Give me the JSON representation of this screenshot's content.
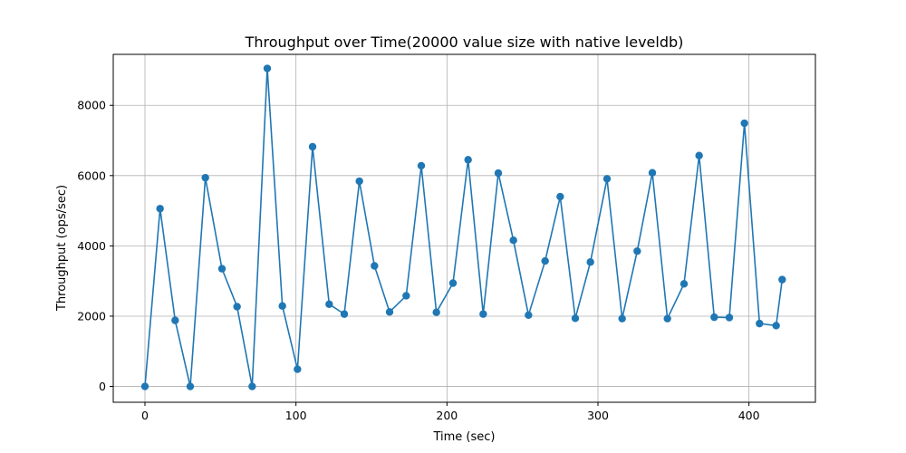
{
  "chart_data": {
    "type": "line",
    "title": "Throughput over Time(20000 value size with native leveldb)",
    "xlabel": "Time (sec)",
    "ylabel": "Throughput (ops/sec)",
    "xlim": [
      -21,
      444
    ],
    "ylim": [
      -450,
      9450
    ],
    "xticks": [
      0,
      100,
      200,
      300,
      400
    ],
    "yticks": [
      0,
      2000,
      4000,
      6000,
      8000
    ],
    "grid": true,
    "colors": {
      "series": "#1f77b4",
      "grid": "#b0b0b0",
      "axes": "#000000"
    },
    "series": [
      {
        "x": [
          0,
          10,
          20,
          30,
          40,
          51,
          61,
          71,
          81,
          91,
          101,
          111,
          122,
          132,
          142,
          152,
          162,
          173,
          183,
          193,
          204,
          214,
          224,
          234,
          244,
          254,
          265,
          275,
          285,
          295,
          306,
          316,
          326,
          336,
          346,
          357,
          367,
          377,
          387,
          397,
          407,
          418,
          422
        ],
        "y": [
          0,
          5060,
          1880,
          0,
          5940,
          3350,
          2270,
          0,
          9050,
          2290,
          490,
          6820,
          2340,
          2060,
          5840,
          3430,
          2120,
          2580,
          6280,
          2110,
          2940,
          6450,
          2060,
          6070,
          4160,
          2030,
          3570,
          5400,
          1940,
          3540,
          5910,
          1930,
          3850,
          6080,
          1930,
          2920,
          6570,
          1970,
          1960,
          7490,
          1790,
          1730,
          3040
        ]
      }
    ]
  }
}
